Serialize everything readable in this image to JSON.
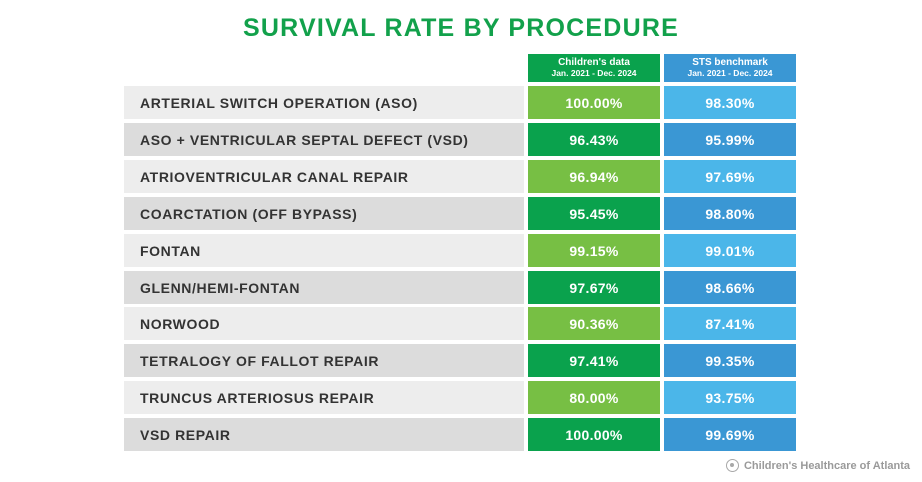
{
  "title": "SURVIVAL RATE BY PROCEDURE",
  "columns": {
    "childrens": {
      "name": "Children's data",
      "period": "Jan. 2021 - Dec. 2024"
    },
    "sts": {
      "name": "STS benchmark",
      "period": "Jan. 2021 - Dec. 2024"
    }
  },
  "rows": [
    {
      "procedure": "ARTERIAL SWITCH OPERATION (ASO)",
      "childrens": "100.00%",
      "sts": "98.30%"
    },
    {
      "procedure": "ASO + VENTRICULAR SEPTAL DEFECT (VSD)",
      "childrens": "96.43%",
      "sts": "95.99%"
    },
    {
      "procedure": "ATRIOVENTRICULAR CANAL REPAIR",
      "childrens": "96.94%",
      "sts": "97.69%"
    },
    {
      "procedure": "COARCTATION (OFF BYPASS)",
      "childrens": "95.45%",
      "sts": "98.80%"
    },
    {
      "procedure": "FONTAN",
      "childrens": "99.15%",
      "sts": "99.01%"
    },
    {
      "procedure": "GLENN/HEMI-FONTAN",
      "childrens": "97.67%",
      "sts": "98.66%"
    },
    {
      "procedure": "NORWOOD",
      "childrens": "90.36%",
      "sts": "87.41%"
    },
    {
      "procedure": "TETRALOGY OF FALLOT REPAIR",
      "childrens": "97.41%",
      "sts": "99.35%"
    },
    {
      "procedure": "TRUNCUS ARTERIOSUS REPAIR",
      "childrens": "80.00%",
      "sts": "93.75%"
    },
    {
      "procedure": "VSD REPAIR",
      "childrens": "100.00%",
      "sts": "99.69%"
    }
  ],
  "colors": {
    "title": "#12a14b",
    "row_label_light": "#ededed",
    "row_label_dark": "#dcdcdc",
    "childrens_light": "#77bf44",
    "childrens_dark": "#0aa24d",
    "sts_light": "#4bb6e9",
    "sts_dark": "#3a97d4"
  },
  "logo_text": "Children's Healthcare of Atlanta",
  "chart_data": {
    "type": "table",
    "title": "SURVIVAL RATE BY PROCEDURE",
    "columns": [
      "Children's data Jan. 2021 - Dec. 2024",
      "STS benchmark Jan. 2021 - Dec. 2024"
    ],
    "categories": [
      "ARTERIAL SWITCH OPERATION (ASO)",
      "ASO + VENTRICULAR SEPTAL DEFECT (VSD)",
      "ATRIOVENTRICULAR CANAL REPAIR",
      "COARCTATION (OFF BYPASS)",
      "FONTAN",
      "GLENN/HEMI-FONTAN",
      "NORWOOD",
      "TETRALOGY OF FALLOT REPAIR",
      "TRUNCUS ARTERIOSUS REPAIR",
      "VSD REPAIR"
    ],
    "series": [
      {
        "name": "Children's data",
        "values": [
          100.0,
          96.43,
          96.94,
          95.45,
          99.15,
          97.67,
          90.36,
          97.41,
          80.0,
          100.0
        ]
      },
      {
        "name": "STS benchmark",
        "values": [
          98.3,
          95.99,
          97.69,
          98.8,
          99.01,
          98.66,
          87.41,
          99.35,
          93.75,
          99.69
        ]
      }
    ]
  }
}
